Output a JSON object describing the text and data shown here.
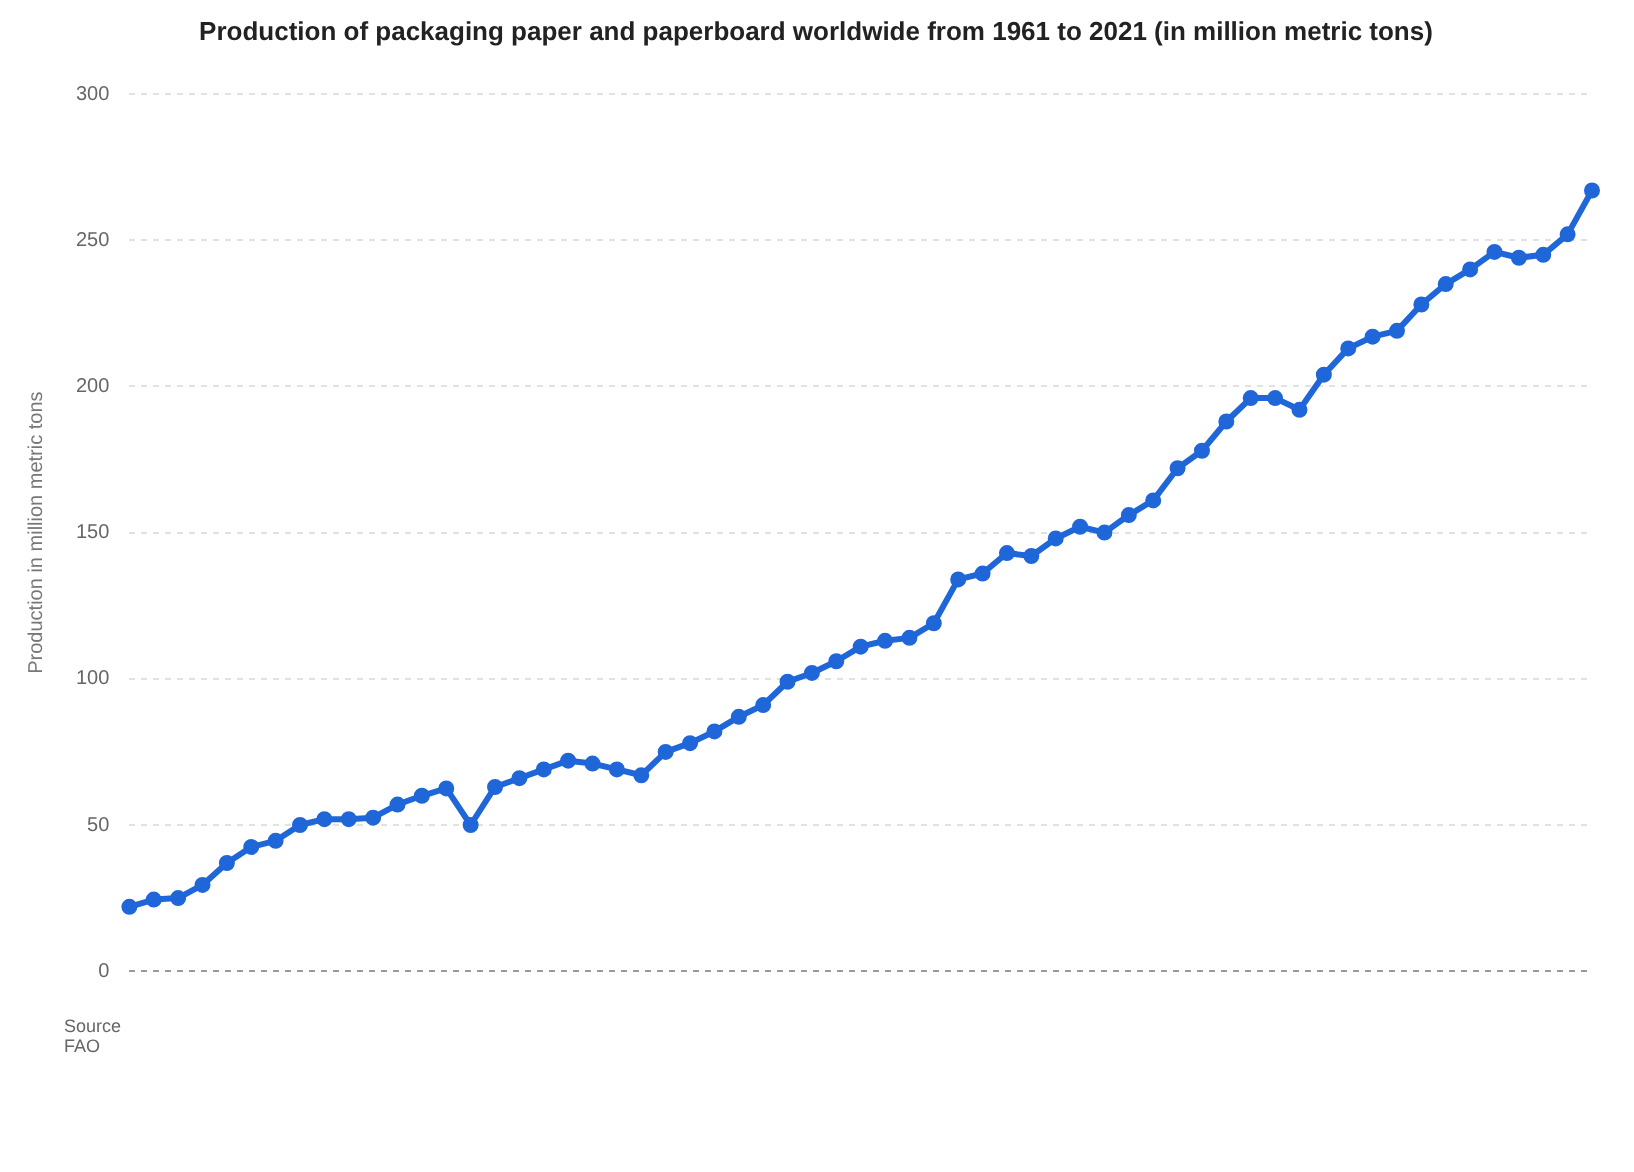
{
  "chart_data": {
    "type": "line",
    "title": "Production of packaging paper and paperboard worldwide from 1961 to 2021 (in million metric tons)",
    "ylabel": "Production in million metric tons",
    "categories": [
      null,
      null,
      null,
      null,
      null,
      null,
      null,
      null,
      null,
      null,
      null,
      null,
      null,
      null,
      null,
      null,
      null,
      null,
      null,
      null,
      null,
      null,
      null,
      null,
      null,
      null,
      null,
      null,
      null,
      null,
      null,
      null,
      null,
      null,
      null,
      null,
      null,
      null,
      null,
      null,
      null,
      null,
      null,
      null,
      null,
      null,
      null,
      null,
      null,
      null,
      null,
      null,
      null,
      null,
      null,
      null,
      null,
      null,
      null,
      null,
      null
    ],
    "series": [
      {
        "color": "#1f66d9",
        "values": [
          22,
          24.5,
          25,
          29.5,
          37,
          42.5,
          44.6,
          50,
          52,
          52,
          52.5,
          57,
          60,
          62.5,
          50,
          63,
          66,
          69,
          72,
          71,
          69,
          67,
          75,
          78,
          82,
          87,
          91,
          99,
          102,
          106,
          111,
          113,
          114,
          119,
          134,
          136,
          143,
          142,
          148,
          152,
          150,
          156,
          161,
          172,
          178,
          188,
          196,
          196,
          192,
          204,
          213,
          217,
          219,
          228,
          235,
          240,
          246,
          244,
          245,
          252,
          267
        ]
      }
    ],
    "ylim": [
      0,
      300
    ],
    "yticks": [
      0,
      50,
      100,
      150,
      200,
      250,
      300
    ],
    "grid": "y",
    "legend": false,
    "marker": "circle",
    "line_style": "solid",
    "annotations": [
      "Source",
      "FAO"
    ]
  }
}
